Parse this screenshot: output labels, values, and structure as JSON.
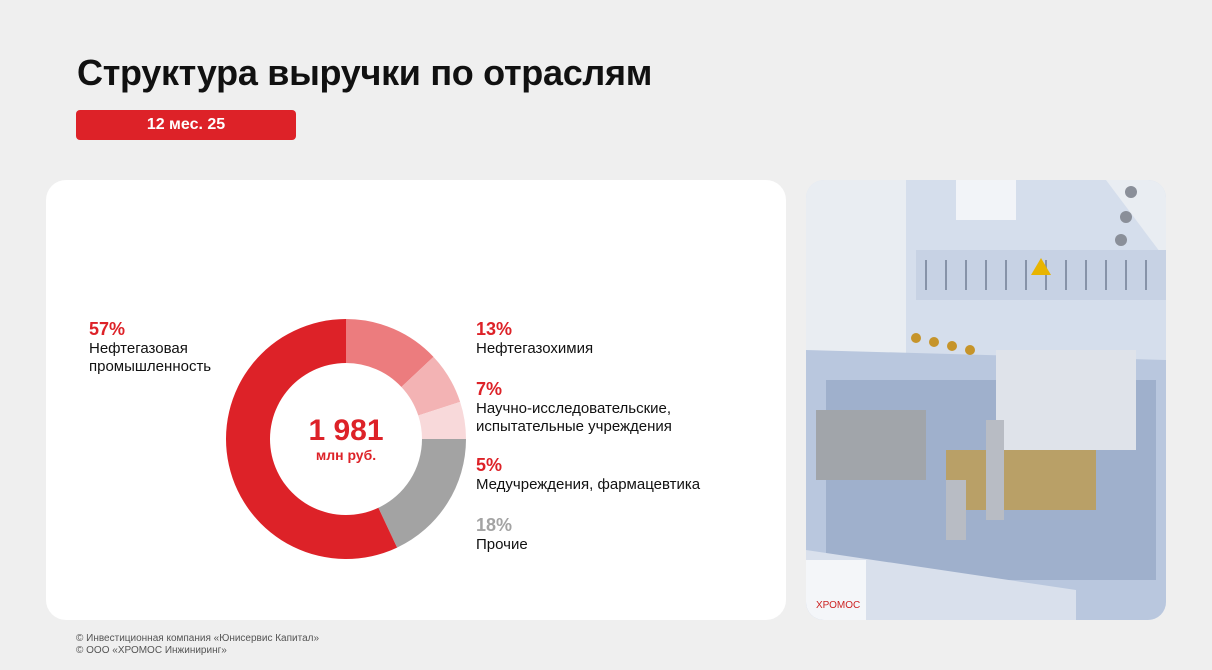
{
  "title": "Структура выручки по отраслям",
  "period_badge": "12 мес. 25",
  "chart_data": {
    "type": "pie",
    "variant": "donut",
    "center_value": "1 981",
    "center_unit": "млн руб.",
    "slices": [
      {
        "label": "Нефтегазохимия",
        "pct_label": "13%",
        "value": 13,
        "color": "#ec7c7e"
      },
      {
        "label": "Научно-исследовательские, испытательные учреждения",
        "pct_label": "7%",
        "value": 7,
        "color": "#f3b3b4"
      },
      {
        "label": "Медучреждения, фармацевтика",
        "pct_label": "5%",
        "value": 5,
        "color": "#f8d9da"
      },
      {
        "label": "Прочие",
        "pct_label": "18%",
        "value": 18,
        "color": "#a3a3a3"
      },
      {
        "label": "Нефтегазовая промышленность",
        "pct_label": "57%",
        "value": 57,
        "color": "#dd2228"
      }
    ],
    "label_lines": {
      "neftegaz": [
        "Нефтегазовая",
        "промышленность"
      ],
      "nauka": [
        "Научно-исследовательские,",
        "испытательные учреждения"
      ]
    }
  },
  "footer": [
    "© Инвестиционная компания «Юнисервис Капитал»",
    "© ООО «ХРОМОС Инжиниринг»"
  ],
  "photo_text": "ХРОМОС"
}
